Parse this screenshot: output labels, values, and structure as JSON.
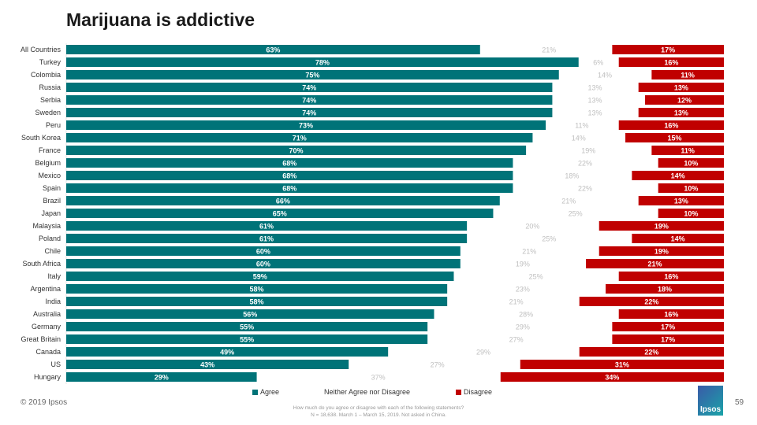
{
  "chart_data": {
    "type": "bar",
    "title": "Marijuana is addictive",
    "stacked": true,
    "orientation": "horizontal",
    "categories": [
      "All Countries",
      "Turkey",
      "Colombia",
      "Russia",
      "Serbia",
      "Sweden",
      "Peru",
      "South Korea",
      "France",
      "Belgium",
      "Mexico",
      "Spain",
      "Brazil",
      "Japan",
      "Malaysia",
      "Poland",
      "Chile",
      "South Africa",
      "Italy",
      "Argentina",
      "India",
      "Australia",
      "Germany",
      "Great Britain",
      "Canada",
      "US",
      "Hungary"
    ],
    "series": [
      {
        "name": "Agree",
        "color": "#007378",
        "values": [
          63,
          78,
          75,
          74,
          74,
          74,
          73,
          71,
          70,
          68,
          68,
          68,
          66,
          65,
          61,
          61,
          60,
          60,
          59,
          58,
          58,
          56,
          55,
          55,
          49,
          43,
          29
        ]
      },
      {
        "name": "Neither Agree nor Disagree",
        "color": "#bfbfbf",
        "values": [
          21,
          6,
          14,
          13,
          13,
          13,
          11,
          14,
          19,
          22,
          18,
          22,
          21,
          25,
          20,
          25,
          21,
          19,
          25,
          23,
          21,
          28,
          29,
          27,
          29,
          27,
          37
        ]
      },
      {
        "name": "Disagree",
        "color": "#c00000",
        "values": [
          17,
          16,
          11,
          13,
          12,
          13,
          16,
          15,
          11,
          10,
          14,
          10,
          13,
          10,
          19,
          14,
          19,
          21,
          16,
          18,
          22,
          16,
          17,
          17,
          22,
          31,
          34
        ]
      }
    ],
    "legend": "bottom"
  },
  "footer": {
    "copyright": "© 2019 Ipsos",
    "note1": "How much do you agree or disagree with each of the following statements?",
    "note2": "N = 18,638. March 1 – March 15, 2019. Not asked in China.",
    "page": "59",
    "logo": "Ipsos"
  }
}
